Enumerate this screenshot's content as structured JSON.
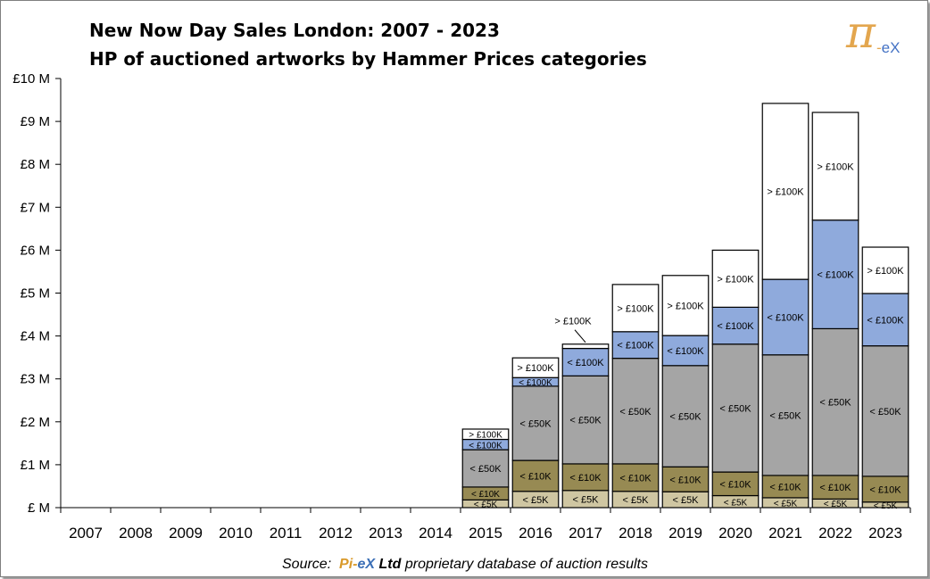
{
  "header": {
    "title_line1": "New Now Day Sales London: 2007 - 2023",
    "title_line2": "HP of auctioned artworks by Hammer Prices categories"
  },
  "logo": {
    "pi": "π",
    "dash": "-",
    "ex": "eX"
  },
  "footer": {
    "source_prefix": "Source:",
    "brand_a": "Pi-",
    "brand_b": "eX",
    "brand_c": "Ltd",
    "source_suffix": "proprietary database of auction results"
  },
  "colors": {
    "lt5k": "#cfc6a2",
    "lt10k": "#978a53",
    "lt50k": "#a5a5a5",
    "lt100k": "#8faadc",
    "gt100k": "#ffffff",
    "stroke": "#000000"
  },
  "chart_data": {
    "type": "bar",
    "stacked": true,
    "categories": [
      "2007",
      "2008",
      "2009",
      "2010",
      "2011",
      "2012",
      "2013",
      "2014",
      "2015",
      "2016",
      "2017",
      "2018",
      "2019",
      "2020",
      "2021",
      "2022",
      "2023"
    ],
    "y_ticks": [
      "£ M",
      "£1 M",
      "£2 M",
      "£3 M",
      "£4 M",
      "£5 M",
      "£6 M",
      "£7 M",
      "£8 M",
      "£9 M",
      "£10 M"
    ],
    "ylim": [
      0,
      10
    ],
    "unit": "£M",
    "series": [
      {
        "name": "< £5K",
        "color_key": "lt5k",
        "values": [
          0,
          0,
          0,
          0,
          0,
          0,
          0,
          0,
          0.18,
          0.38,
          0.4,
          0.38,
          0.37,
          0.28,
          0.23,
          0.2,
          0.13
        ]
      },
      {
        "name": "< £10K",
        "color_key": "lt10k",
        "values": [
          0,
          0,
          0,
          0,
          0,
          0,
          0,
          0,
          0.3,
          0.72,
          0.62,
          0.64,
          0.58,
          0.55,
          0.52,
          0.55,
          0.6
        ]
      },
      {
        "name": "< £50K",
        "color_key": "lt50k",
        "values": [
          0,
          0,
          0,
          0,
          0,
          0,
          0,
          0,
          0.87,
          1.73,
          2.05,
          2.46,
          2.36,
          2.98,
          2.81,
          3.42,
          3.04
        ]
      },
      {
        "name": "< £100K",
        "color_key": "lt100k",
        "values": [
          0,
          0,
          0,
          0,
          0,
          0,
          0,
          0,
          0.24,
          0.2,
          0.64,
          0.62,
          0.7,
          0.86,
          1.76,
          2.53,
          1.22
        ]
      },
      {
        "name": "> £100K",
        "color_key": "gt100k",
        "values": [
          0,
          0,
          0,
          0,
          0,
          0,
          0,
          0,
          0.24,
          0.46,
          0.1,
          1.1,
          1.4,
          1.33,
          4.1,
          2.51,
          1.08
        ]
      }
    ],
    "segment_labels": [
      "< £5K",
      "< £10K",
      "< £50K",
      "< £100K",
      "> £100K"
    ],
    "callout": {
      "year": "2017",
      "label": "> £100K"
    }
  }
}
